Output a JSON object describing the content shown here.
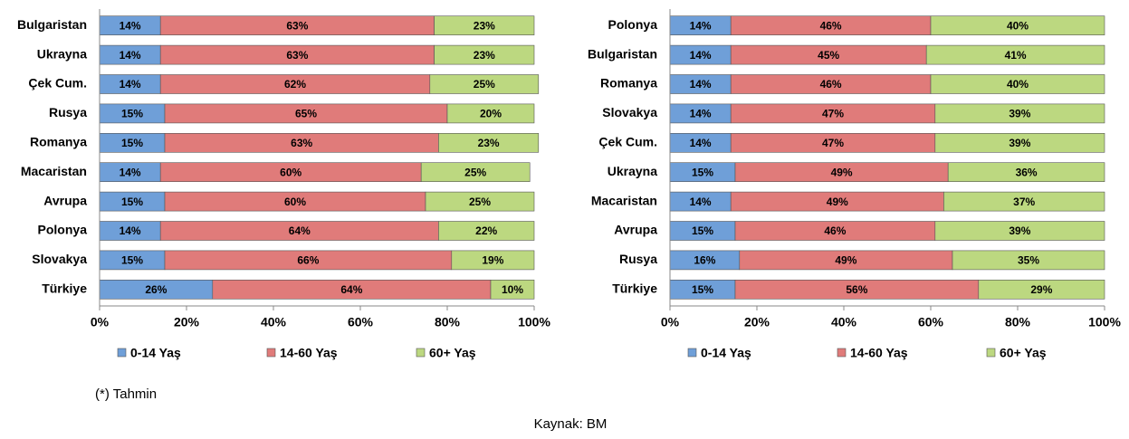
{
  "chart_data": [
    {
      "type": "stacked-bar-horizontal",
      "categories": [
        "Bulgaristan",
        "Ukrayna",
        "Çek Cum.",
        "Rusya",
        "Romanya",
        "Macaristan",
        "Avrupa",
        "Polonya",
        "Slovakya",
        "Türkiye"
      ],
      "series": [
        {
          "name": "0-14 Yaş",
          "color": "#6f9fd8",
          "values": [
            14,
            14,
            14,
            15,
            15,
            14,
            15,
            14,
            15,
            26
          ],
          "value_labels": [
            "14%",
            "14%",
            "14%",
            "15%",
            "15%",
            "14%",
            "15%",
            "14%",
            "15%",
            "26%"
          ]
        },
        {
          "name": "14-60 Yaş",
          "color": "#e07b7a",
          "values": [
            63,
            63,
            62,
            65,
            63,
            60,
            60,
            64,
            66,
            64
          ],
          "value_labels": [
            "63%",
            "63%",
            "62%",
            "65%",
            "63%",
            "60%",
            "60%",
            "64%",
            "66%",
            "64%"
          ]
        },
        {
          "name": "60+ Yaş",
          "color": "#bcd880",
          "values": [
            23,
            23,
            25,
            20,
            23,
            25,
            25,
            22,
            19,
            10
          ],
          "value_labels": [
            "23%",
            "23%",
            "25%",
            "20%",
            "23%",
            "25%",
            "25%",
            "22%",
            "19%",
            "10%"
          ]
        }
      ],
      "xlim": [
        0,
        100
      ],
      "xticks": [
        {
          "value": 0,
          "label": "0%"
        },
        {
          "value": 20,
          "label": "20%"
        },
        {
          "value": 40,
          "label": "40%"
        },
        {
          "value": 60,
          "label": "60%"
        },
        {
          "value": 80,
          "label": "80%"
        },
        {
          "value": 100,
          "label": "100%"
        }
      ],
      "legend": "bottom"
    },
    {
      "type": "stacked-bar-horizontal",
      "categories": [
        "Polonya",
        "Bulgaristan",
        "Romanya",
        "Slovakya",
        "Çek Cum.",
        "Ukrayna",
        "Macaristan",
        "Avrupa",
        "Rusya",
        "Türkiye"
      ],
      "series": [
        {
          "name": "0-14 Yaş",
          "color": "#6f9fd8",
          "values": [
            14,
            14,
            14,
            14,
            14,
            15,
            14,
            15,
            16,
            15
          ],
          "value_labels": [
            "14%",
            "14%",
            "14%",
            "14%",
            "14%",
            "15%",
            "14%",
            "15%",
            "16%",
            "15%"
          ]
        },
        {
          "name": "14-60 Yaş",
          "color": "#e07b7a",
          "values": [
            46,
            45,
            46,
            47,
            47,
            49,
            49,
            46,
            49,
            56
          ],
          "value_labels": [
            "46%",
            "45%",
            "46%",
            "47%",
            "47%",
            "49%",
            "49%",
            "46%",
            "49%",
            "56%"
          ]
        },
        {
          "name": "60+ Yaş",
          "color": "#bcd880",
          "values": [
            40,
            41,
            40,
            39,
            39,
            36,
            37,
            39,
            35,
            29
          ],
          "value_labels": [
            "40%",
            "41%",
            "40%",
            "39%",
            "39%",
            "36%",
            "37%",
            "39%",
            "35%",
            "29%"
          ]
        }
      ],
      "xlim": [
        0,
        100
      ],
      "xticks": [
        {
          "value": 0,
          "label": "0%"
        },
        {
          "value": 20,
          "label": "20%"
        },
        {
          "value": 40,
          "label": "40%"
        },
        {
          "value": 60,
          "label": "60%"
        },
        {
          "value": 80,
          "label": "80%"
        },
        {
          "value": 100,
          "label": "100%"
        }
      ],
      "legend": "bottom"
    }
  ],
  "notes": {
    "footnote": "(*) Tahmin",
    "source": "Kaynak: BM"
  }
}
